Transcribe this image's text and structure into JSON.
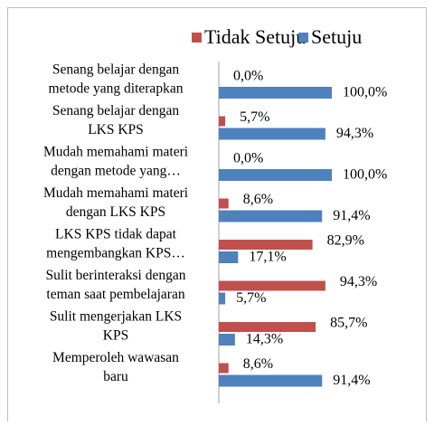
{
  "chart_data": {
    "type": "hbar",
    "categories": [
      [
        "Senang belajar dengan",
        "metode yang diterapkan"
      ],
      [
        "Senang belajar dengan",
        "LKS KPS"
      ],
      [
        "Mudah memahami materi",
        "dengan metode yang…"
      ],
      [
        "Mudah memahami materi",
        "dengan LKS KPS"
      ],
      [
        "LKS KPS tidak dapat",
        "mengembangkan KPS…"
      ],
      [
        "Sulit berinteraksi dengan",
        "teman saat pembelajaran"
      ],
      [
        "Sulit mengerjakan LKS",
        "KPS"
      ],
      [
        "Memperoleh wawasan",
        "baru"
      ]
    ],
    "series": [
      {
        "name": "Tidak Setuju",
        "color": "#c0504d",
        "values": [
          0.0,
          5.7,
          0.0,
          8.6,
          82.9,
          94.3,
          85.7,
          8.6
        ],
        "value_labels": [
          "0,0%",
          "5,7%",
          "0,0%",
          "8,6%",
          "82,9%",
          "94,3%",
          "85,7%",
          "8,6%"
        ]
      },
      {
        "name": "Setuju",
        "color": "#4f81bd",
        "values": [
          100.0,
          94.3,
          100.0,
          91.4,
          17.1,
          5.7,
          14.3,
          91.4
        ],
        "value_labels": [
          "100,0%",
          "94,3%",
          "100,0%",
          "91,4%",
          "17,1%",
          "5,7%",
          "14,3%",
          "91,4%"
        ]
      }
    ],
    "legend": "top"
  }
}
